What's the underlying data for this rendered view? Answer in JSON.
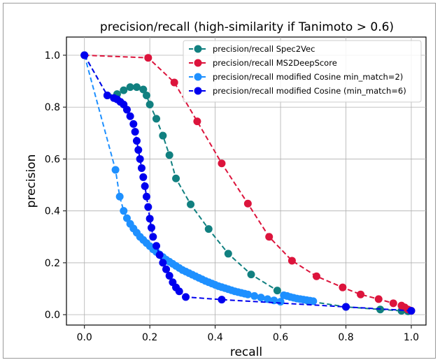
{
  "chart_data": {
    "type": "line",
    "title": "precision/recall (high-similarity if Tanimoto > 0.6)",
    "xlabel": "recall",
    "ylabel": "precision",
    "xlim": [
      -0.055,
      1.045
    ],
    "ylim": [
      -0.04,
      1.07
    ],
    "xticks": [
      "0.0",
      "0.2",
      "0.4",
      "0.6",
      "0.8",
      "1.0"
    ],
    "yticks": [
      "0.0",
      "0.2",
      "0.4",
      "0.6",
      "0.8",
      "1.0"
    ],
    "grid": true,
    "legend_position": "top-right",
    "series": [
      {
        "name": "precision/recall Spec2Vec",
        "color": "#118080",
        "points": [
          [
            0.0,
            1.0
          ],
          [
            0.07,
            0.845
          ],
          [
            0.1,
            0.85
          ],
          [
            0.12,
            0.865
          ],
          [
            0.14,
            0.877
          ],
          [
            0.16,
            0.877
          ],
          [
            0.18,
            0.868
          ],
          [
            0.19,
            0.845
          ],
          [
            0.2,
            0.81
          ],
          [
            0.22,
            0.755
          ],
          [
            0.24,
            0.69
          ],
          [
            0.26,
            0.615
          ],
          [
            0.28,
            0.525
          ],
          [
            0.325,
            0.425
          ],
          [
            0.38,
            0.33
          ],
          [
            0.44,
            0.235
          ],
          [
            0.51,
            0.155
          ],
          [
            0.59,
            0.093
          ],
          [
            0.685,
            0.052
          ],
          [
            0.8,
            0.03
          ],
          [
            0.905,
            0.02
          ],
          [
            0.97,
            0.015
          ],
          [
            0.99,
            0.013
          ]
        ]
      },
      {
        "name": "precision/recall MS2DeepScore",
        "color": "#dc143c",
        "points": [
          [
            0.0,
            1.0
          ],
          [
            0.195,
            0.99
          ],
          [
            0.275,
            0.895
          ],
          [
            0.345,
            0.745
          ],
          [
            0.42,
            0.583
          ],
          [
            0.5,
            0.428
          ],
          [
            0.565,
            0.3
          ],
          [
            0.635,
            0.208
          ],
          [
            0.71,
            0.148
          ],
          [
            0.79,
            0.105
          ],
          [
            0.845,
            0.078
          ],
          [
            0.9,
            0.06
          ],
          [
            0.945,
            0.044
          ],
          [
            0.97,
            0.035
          ],
          [
            0.98,
            0.028
          ],
          [
            0.99,
            0.02
          ],
          [
            1.0,
            0.015
          ]
        ]
      },
      {
        "name": "precision/recall modified Cosine min_match=2)",
        "color": "#1e90ff",
        "points": [
          [
            0.0,
            1.0
          ],
          [
            0.095,
            0.558
          ],
          [
            0.108,
            0.455
          ],
          [
            0.12,
            0.4
          ],
          [
            0.13,
            0.372
          ],
          [
            0.14,
            0.35
          ],
          [
            0.15,
            0.332
          ],
          [
            0.16,
            0.316
          ],
          [
            0.17,
            0.3
          ],
          [
            0.18,
            0.288
          ],
          [
            0.19,
            0.276
          ],
          [
            0.2,
            0.264
          ],
          [
            0.21,
            0.252
          ],
          [
            0.22,
            0.242
          ],
          [
            0.23,
            0.232
          ],
          [
            0.24,
            0.222
          ],
          [
            0.25,
            0.212
          ],
          [
            0.26,
            0.204
          ],
          [
            0.27,
            0.196
          ],
          [
            0.28,
            0.188
          ],
          [
            0.29,
            0.18
          ],
          [
            0.3,
            0.172
          ],
          [
            0.31,
            0.166
          ],
          [
            0.32,
            0.16
          ],
          [
            0.33,
            0.154
          ],
          [
            0.34,
            0.148
          ],
          [
            0.35,
            0.142
          ],
          [
            0.36,
            0.136
          ],
          [
            0.37,
            0.13
          ],
          [
            0.38,
            0.125
          ],
          [
            0.39,
            0.12
          ],
          [
            0.4,
            0.115
          ],
          [
            0.41,
            0.11
          ],
          [
            0.42,
            0.106
          ],
          [
            0.43,
            0.102
          ],
          [
            0.44,
            0.098
          ],
          [
            0.45,
            0.094
          ],
          [
            0.46,
            0.09
          ],
          [
            0.47,
            0.087
          ],
          [
            0.48,
            0.084
          ],
          [
            0.49,
            0.081
          ],
          [
            0.5,
            0.078
          ],
          [
            0.52,
            0.072
          ],
          [
            0.54,
            0.066
          ],
          [
            0.56,
            0.06
          ],
          [
            0.58,
            0.055
          ],
          [
            0.6,
            0.05
          ],
          [
            0.61,
            0.075
          ],
          [
            0.62,
            0.072
          ],
          [
            0.63,
            0.068
          ],
          [
            0.64,
            0.065
          ],
          [
            0.65,
            0.062
          ],
          [
            0.66,
            0.06
          ],
          [
            0.67,
            0.058
          ],
          [
            0.68,
            0.056
          ],
          [
            0.69,
            0.054
          ],
          [
            0.7,
            0.052
          ]
        ]
      },
      {
        "name": "precision/recall modified Cosine (min_match=6)",
        "color": "#0000ee",
        "points": [
          [
            0.0,
            1.0
          ],
          [
            0.07,
            0.845
          ],
          [
            0.09,
            0.835
          ],
          [
            0.1,
            0.83
          ],
          [
            0.11,
            0.82
          ],
          [
            0.12,
            0.81
          ],
          [
            0.13,
            0.79
          ],
          [
            0.14,
            0.765
          ],
          [
            0.15,
            0.735
          ],
          [
            0.155,
            0.705
          ],
          [
            0.16,
            0.67
          ],
          [
            0.165,
            0.635
          ],
          [
            0.17,
            0.6
          ],
          [
            0.175,
            0.565
          ],
          [
            0.18,
            0.53
          ],
          [
            0.185,
            0.495
          ],
          [
            0.19,
            0.455
          ],
          [
            0.195,
            0.415
          ],
          [
            0.2,
            0.37
          ],
          [
            0.205,
            0.335
          ],
          [
            0.21,
            0.3
          ],
          [
            0.22,
            0.265
          ],
          [
            0.23,
            0.23
          ],
          [
            0.24,
            0.2
          ],
          [
            0.25,
            0.175
          ],
          [
            0.26,
            0.15
          ],
          [
            0.27,
            0.125
          ],
          [
            0.28,
            0.105
          ],
          [
            0.29,
            0.09
          ],
          [
            0.31,
            0.068
          ],
          [
            0.42,
            0.058
          ],
          [
            0.8,
            0.03
          ],
          [
            1.0,
            0.015
          ]
        ]
      }
    ]
  }
}
